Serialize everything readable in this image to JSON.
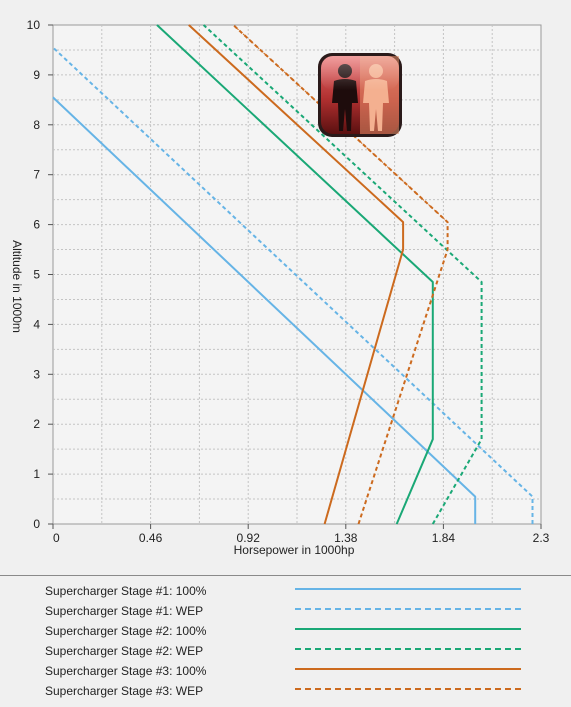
{
  "chart_data": {
    "type": "line",
    "title": "",
    "xlabel": "Horsepower in 1000hp",
    "ylabel": "Altitude in 1000m",
    "xlim": [
      0,
      2.3
    ],
    "ylim": [
      0,
      10
    ],
    "x_ticks": [
      "0",
      "0.46",
      "0.92",
      "1.38",
      "1.84",
      "2.3"
    ],
    "y_ticks": [
      "0",
      "1",
      "2",
      "3",
      "4",
      "5",
      "6",
      "7",
      "8",
      "9",
      "10"
    ],
    "grid": true,
    "legend_position": "bottom",
    "series": [
      {
        "name": "Supercharger Stage #1: 100%",
        "color": "#66b4e6",
        "style": "solid",
        "width": 2,
        "points": [
          [
            1.99,
            0
          ],
          [
            1.99,
            0.55
          ],
          [
            0.0,
            8.55
          ]
        ]
      },
      {
        "name": "Supercharger Stage #1: WEP",
        "color": "#66b4e6",
        "style": "dashed",
        "width": 2,
        "points": [
          [
            2.26,
            0
          ],
          [
            2.26,
            0.55
          ],
          [
            0.0,
            9.55
          ]
        ]
      },
      {
        "name": "Supercharger Stage #2: 100%",
        "color": "#1aa876",
        "style": "solid",
        "width": 2,
        "points": [
          [
            1.62,
            0
          ],
          [
            1.79,
            1.7
          ],
          [
            1.79,
            4.85
          ],
          [
            0.49,
            10.0
          ]
        ]
      },
      {
        "name": "Supercharger Stage #2: WEP",
        "color": "#1aa876",
        "style": "dashed",
        "width": 2,
        "points": [
          [
            1.79,
            0
          ],
          [
            2.02,
            1.7
          ],
          [
            2.02,
            4.85
          ],
          [
            0.71,
            10.0
          ]
        ]
      },
      {
        "name": "Supercharger Stage #3: 100%",
        "color": "#cc6a1e",
        "style": "solid",
        "width": 2,
        "points": [
          [
            1.28,
            0
          ],
          [
            1.65,
            5.5
          ],
          [
            1.65,
            6.05
          ],
          [
            0.64,
            10.0
          ]
        ]
      },
      {
        "name": "Supercharger Stage #3: WEP",
        "color": "#cc6a1e",
        "style": "dashed",
        "width": 2,
        "points": [
          [
            1.44,
            0
          ],
          [
            1.86,
            5.5
          ],
          [
            1.86,
            6.05
          ],
          [
            0.85,
            10.0
          ]
        ]
      },
      {
        "name": "",
        "color": "#cc6a1e",
        "style": "dotted",
        "width": 1,
        "points": [
          [
            1.86,
            6.05
          ],
          [
            0.85,
            10.0
          ]
        ]
      },
      {
        "name": "",
        "color": "#1aa876",
        "style": "solid",
        "width": 1,
        "points": [
          [
            1.62,
            0
          ],
          [
            1.79,
            1.7
          ]
        ]
      }
    ]
  },
  "legend": {
    "items": [
      {
        "label": "Supercharger Stage #1: 100%",
        "color": "#66b4e6",
        "style": "solid"
      },
      {
        "label": "Supercharger Stage #1: WEP",
        "color": "#66b4e6",
        "style": "dashed"
      },
      {
        "label": "Supercharger Stage #2: 100%",
        "color": "#1aa876",
        "style": "solid"
      },
      {
        "label": "Supercharger Stage #2: WEP",
        "color": "#1aa876",
        "style": "dashed"
      },
      {
        "label": "Supercharger Stage #3: 100%",
        "color": "#cc6a1e",
        "style": "solid"
      },
      {
        "label": "Supercharger Stage #3: WEP",
        "color": "#cc6a1e",
        "style": "dashed"
      }
    ]
  },
  "overlay_icon": {
    "name": "crew-silhouette-icon"
  }
}
